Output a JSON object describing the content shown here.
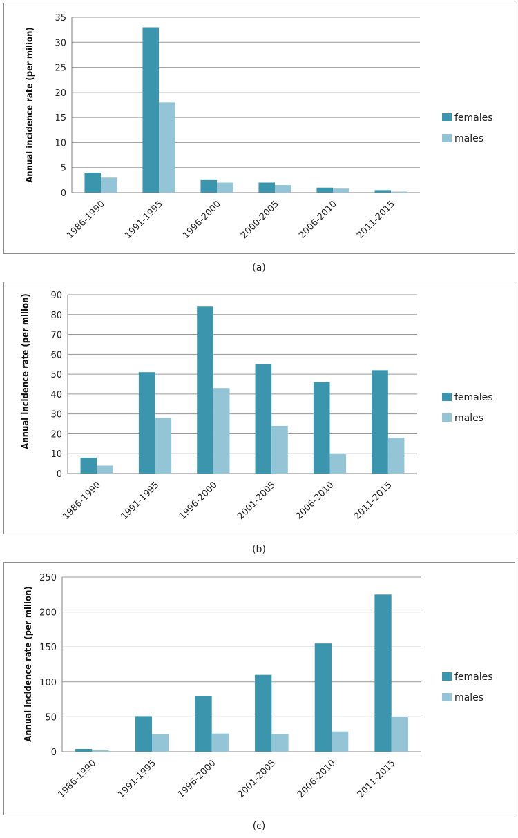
{
  "colors": {
    "females": "#3a95ad",
    "males": "#93c5d6",
    "grid": "#9a9a9a",
    "axis": "#808080"
  },
  "charts": [
    {
      "caption": "(a)",
      "chart_data": {
        "type": "bar",
        "title": "",
        "xlabel": "",
        "ylabel": "Annual incidence rate (per milion)",
        "categories": [
          "1986-1990",
          "1991-1995",
          "1996-2000",
          "2000-2005",
          "2006-2010",
          "2011-2015"
        ],
        "series": [
          {
            "name": "females",
            "values": [
              4,
              33,
              2.5,
              2,
              1,
              0.5
            ]
          },
          {
            "name": "males",
            "values": [
              3,
              18,
              2,
              1.5,
              0.8,
              0.2
            ]
          }
        ],
        "ylim": [
          0,
          35
        ],
        "yticks": [
          0,
          5,
          10,
          15,
          20,
          25,
          30,
          35
        ],
        "grid": true,
        "legend": "right"
      }
    },
    {
      "caption": "(b)",
      "chart_data": {
        "type": "bar",
        "title": "",
        "xlabel": "",
        "ylabel": "Annual incidence rate (per milion)",
        "categories": [
          "1986-1990",
          "1991-1995",
          "1996-2000",
          "2001-2005",
          "2006-2010",
          "2011-2015"
        ],
        "series": [
          {
            "name": "females",
            "values": [
              8,
              51,
              84,
              55,
              46,
              52
            ]
          },
          {
            "name": "males",
            "values": [
              4,
              28,
              43,
              24,
              10,
              18
            ]
          }
        ],
        "ylim": [
          0,
          90
        ],
        "yticks": [
          0,
          10,
          20,
          30,
          40,
          50,
          60,
          70,
          80,
          90
        ],
        "grid": true,
        "legend": "right"
      }
    },
    {
      "caption": "(c)",
      "chart_data": {
        "type": "bar",
        "title": "",
        "xlabel": "",
        "ylabel": "Annual incidence rate (per milion)",
        "categories": [
          "1986-1990",
          "1991-1995",
          "1996-2000",
          "2001-2005",
          "2006-2010",
          "2011-2015"
        ],
        "series": [
          {
            "name": "females",
            "values": [
              4,
              51,
              80,
              110,
              155,
              225
            ]
          },
          {
            "name": "males",
            "values": [
              2,
              25,
              26,
              25,
              29,
              50
            ]
          }
        ],
        "ylim": [
          0,
          250
        ],
        "yticks": [
          0,
          50,
          100,
          150,
          200,
          250
        ],
        "grid": true,
        "legend": "right"
      }
    }
  ]
}
